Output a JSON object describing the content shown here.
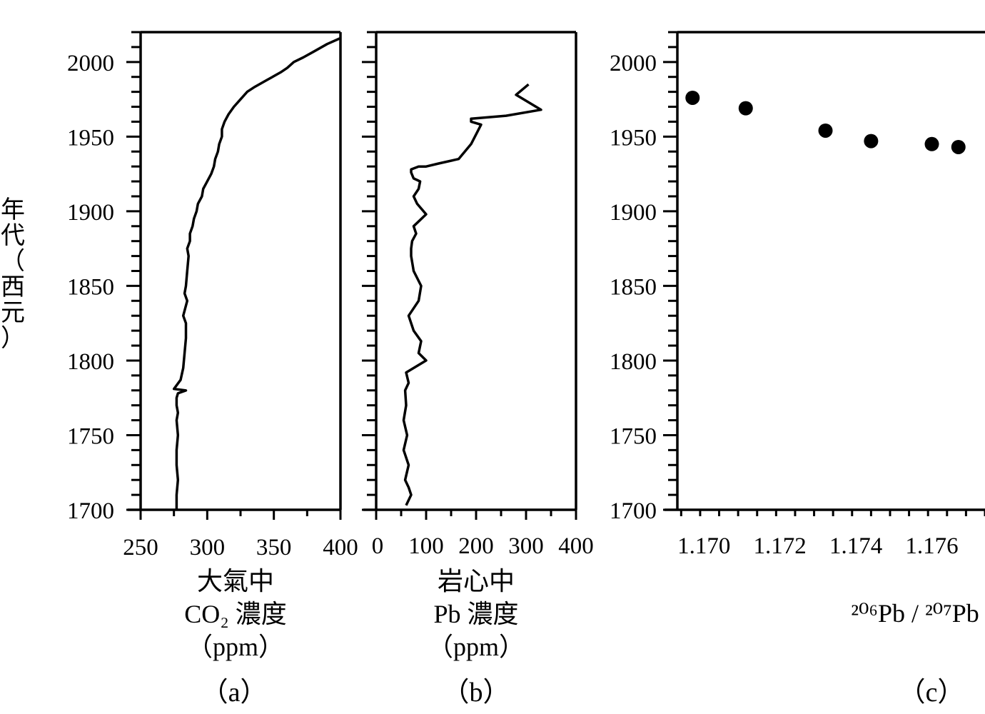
{
  "ylabel": "年代（西元）",
  "chart_data": [
    {
      "type": "line",
      "panel_label": "（a）",
      "xlabel_lines": [
        "大氣中",
        "CO₂ 濃度",
        "（ppm）"
      ],
      "xlim": [
        250,
        400
      ],
      "xticks": [
        250,
        300,
        350,
        400
      ],
      "ylim": [
        1700,
        2020
      ],
      "yticks": [
        1700,
        1750,
        1800,
        1850,
        1900,
        1950,
        2000
      ],
      "series": [
        {
          "x": [
            277,
            277,
            278,
            277,
            277,
            278,
            277,
            278,
            277,
            277,
            278,
            284,
            275,
            280,
            282,
            283,
            284,
            284,
            282,
            285,
            283,
            284,
            285,
            286,
            285,
            287,
            287,
            289,
            290,
            292,
            293,
            296,
            297,
            300,
            303,
            305,
            306,
            308,
            309,
            311,
            311,
            313,
            316,
            320,
            325,
            330,
            335,
            345,
            355,
            360,
            365,
            372,
            380,
            390,
            400
          ],
          "y": [
            1700,
            1710,
            1720,
            1730,
            1740,
            1750,
            1760,
            1765,
            1770,
            1775,
            1778,
            1780,
            1781,
            1787,
            1795,
            1805,
            1815,
            1825,
            1830,
            1840,
            1845,
            1850,
            1860,
            1870,
            1875,
            1880,
            1885,
            1890,
            1895,
            1900,
            1905,
            1910,
            1915,
            1920,
            1925,
            1930,
            1935,
            1940,
            1945,
            1950,
            1955,
            1960,
            1965,
            1970,
            1975,
            1980,
            1983,
            1988,
            1993,
            1996,
            2000,
            2003,
            2007,
            2012,
            2016
          ]
        }
      ]
    },
    {
      "type": "line",
      "panel_label": "（b）",
      "xlabel_lines": [
        "岩心中",
        "Pb 濃度",
        "（ppm）"
      ],
      "xlim": [
        0,
        400
      ],
      "xticks": [
        0,
        100,
        200,
        300,
        400
      ],
      "ylim": [
        1700,
        2020
      ],
      "yticks": [
        1700,
        1750,
        1800,
        1850,
        1900,
        1950,
        2000
      ],
      "series": [
        {
          "x": [
            60,
            70,
            65,
            58,
            65,
            55,
            62,
            55,
            60,
            58,
            65,
            60,
            100,
            85,
            90,
            75,
            65,
            85,
            90,
            75,
            70,
            70,
            72,
            80,
            75,
            100,
            82,
            75,
            85,
            88,
            75,
            70,
            70,
            85,
            100,
            125,
            165,
            190,
            210,
            190,
            190,
            260,
            330,
            280,
            305
          ],
          "y": [
            1703,
            1710,
            1715,
            1720,
            1730,
            1740,
            1750,
            1760,
            1770,
            1780,
            1785,
            1792,
            1800,
            1805,
            1813,
            1820,
            1830,
            1840,
            1850,
            1860,
            1870,
            1875,
            1880,
            1885,
            1890,
            1898,
            1905,
            1910,
            1915,
            1920,
            1922,
            1926,
            1928,
            1930,
            1930,
            1932,
            1935,
            1945,
            1958,
            1960,
            1962,
            1964,
            1968,
            1978,
            1985
          ]
        }
      ]
    },
    {
      "type": "scatter",
      "panel_label": "（c）",
      "xlabel": "²⁰⁶Pb / ²⁰⁷Pb",
      "xlim": [
        1.1693,
        1.1774
      ],
      "xticks": [
        1.17,
        1.172,
        1.174,
        1.176
      ],
      "xtick_labels": [
        "1.170",
        "1.172",
        "1.174",
        "1.176"
      ],
      "ylim": [
        1700,
        2020
      ],
      "yticks": [
        1700,
        1750,
        1800,
        1850,
        1900,
        1950,
        2000
      ],
      "series": [
        {
          "x": [
            1.1697,
            1.1711,
            1.1732,
            1.1744,
            1.176,
            1.1767
          ],
          "y": [
            1976,
            1969,
            1954,
            1947,
            1945,
            1943
          ]
        }
      ]
    }
  ]
}
